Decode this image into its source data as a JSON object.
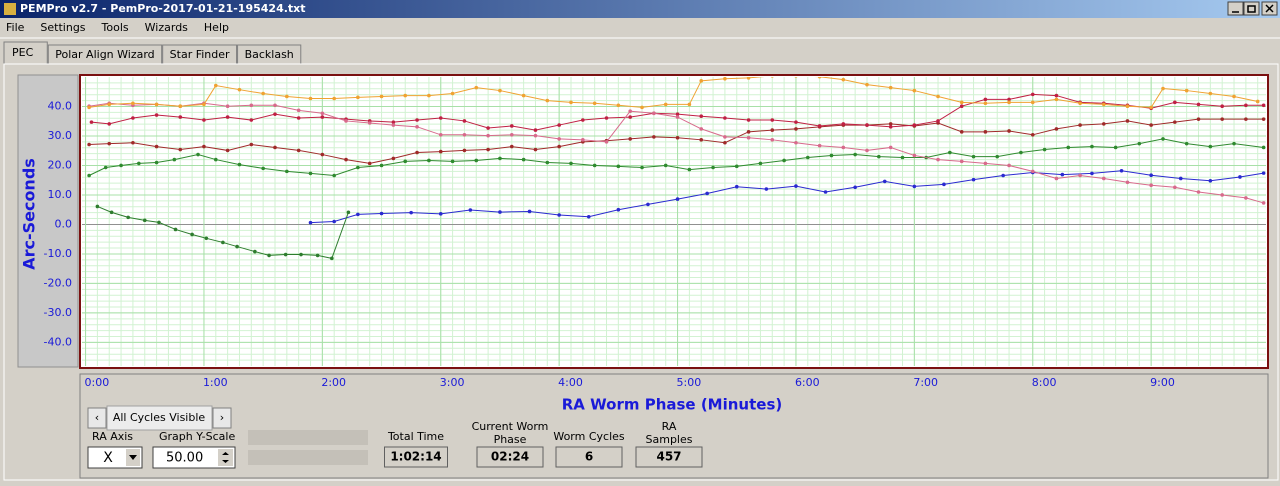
{
  "window": {
    "title": "PEMPro v2.7 - PemPro-2017-01-21-195424.txt",
    "menu": [
      "File",
      "Settings",
      "Tools",
      "Wizards",
      "Help"
    ],
    "tabs": [
      "PEC",
      "Polar Align Wizard",
      "Star Finder",
      "Backlash"
    ]
  },
  "controls": {
    "cycles": "All Cycles Visible",
    "ra_axis_label": "RA Axis",
    "ra_axis_value": "X",
    "y_scale_label": "Graph Y-Scale",
    "y_scale_value": "50.00",
    "total_time": {
      "label": [
        "Total Time"
      ],
      "value": "1:02:14"
    },
    "worm_phase": {
      "label": [
        "Current Worm",
        "Phase"
      ],
      "value": "02:24"
    },
    "worm_cycles": {
      "label": [
        "Worm Cycles"
      ],
      "value": "6"
    },
    "ra_samples": {
      "label": [
        "RA",
        "Samples"
      ],
      "value": "457"
    }
  },
  "chart_data": {
    "type": "line",
    "y_label": "Arc-Seconds",
    "x_label": "RA Worm Phase (Minutes)",
    "xlim": [
      -0.03,
      9.97
    ],
    "ylim": [
      -48,
      50
    ],
    "grid": true,
    "xticks": [
      {
        "value": 0,
        "label": "0:00"
      },
      {
        "value": 1,
        "label": "1:00"
      },
      {
        "value": 2,
        "label": "2:00"
      },
      {
        "value": 3,
        "label": "3:00"
      },
      {
        "value": 4,
        "label": "4:00"
      },
      {
        "value": 5,
        "label": "5:00"
      },
      {
        "value": 6,
        "label": "6:00"
      },
      {
        "value": 7,
        "label": "7:00"
      },
      {
        "value": 8,
        "label": "8:00"
      },
      {
        "value": 9,
        "label": "9:00"
      }
    ],
    "yticks": [
      {
        "value": 40,
        "label": "40.0"
      },
      {
        "value": 30,
        "label": "30.0"
      },
      {
        "value": 20,
        "label": "20.0"
      },
      {
        "value": 10,
        "label": "10.0"
      },
      {
        "value": 0,
        "label": "0.0"
      },
      {
        "value": -10,
        "label": "-10.0"
      },
      {
        "value": -20,
        "label": "-20.0"
      },
      {
        "value": -30,
        "label": "-30.0"
      },
      {
        "value": -40,
        "label": "-40.0"
      }
    ],
    "series": [
      {
        "color": "#2a2ad0",
        "x": [
          1.9,
          2.1,
          2.3,
          2.5,
          2.75,
          3.0,
          3.25,
          3.5,
          3.75,
          4.0,
          4.25,
          4.5,
          4.75,
          5.0,
          5.25,
          5.5,
          5.75,
          6.0,
          6.25,
          6.5,
          6.75,
          7.0,
          7.25,
          7.5,
          7.75,
          8.0,
          8.25,
          8.5,
          8.75,
          9.0,
          9.25,
          9.5,
          9.75,
          9.95
        ],
        "values": [
          0.6,
          1.0,
          3.4,
          3.7,
          4.0,
          3.6,
          4.9,
          4.2,
          4.4,
          3.2,
          2.6,
          5.0,
          6.8,
          8.6,
          10.5,
          12.8,
          12.0,
          13.0,
          11.0,
          12.6,
          14.6,
          12.9,
          13.6,
          15.2,
          16.6,
          17.6,
          16.9,
          17.3,
          18.2,
          16.7,
          15.6,
          14.8,
          16.1,
          17.4
        ]
      },
      {
        "color": "#2e7d2e",
        "x": [
          0.1,
          0.22,
          0.36,
          0.5,
          0.62,
          0.76,
          0.9,
          1.02,
          1.16,
          1.28,
          1.43,
          1.55,
          1.69,
          1.82,
          1.96,
          2.08,
          2.22
        ],
        "values": [
          6.1,
          4.1,
          2.4,
          1.4,
          0.7,
          -1.7,
          -3.4,
          -4.7,
          -6.1,
          -7.5,
          -9.2,
          -10.5,
          -10.2,
          -10.2,
          -10.5,
          -11.5,
          4.1
        ]
      },
      {
        "color": "#2f8a2f",
        "x": [
          0.03,
          0.17,
          0.3,
          0.45,
          0.6,
          0.75,
          0.95,
          1.1,
          1.3,
          1.5,
          1.7,
          1.9,
          2.1,
          2.3,
          2.5,
          2.7,
          2.9,
          3.1,
          3.3,
          3.5,
          3.7,
          3.9,
          4.1,
          4.3,
          4.5,
          4.7,
          4.9,
          5.1,
          5.3,
          5.5,
          5.7,
          5.9,
          6.1,
          6.3,
          6.5,
          6.7,
          6.9,
          7.1,
          7.3,
          7.5,
          7.7,
          7.9,
          8.1,
          8.3,
          8.5,
          8.7,
          8.9,
          9.1,
          9.3,
          9.5,
          9.7,
          9.95
        ],
        "values": [
          16.6,
          19.3,
          20.0,
          20.7,
          21.0,
          22.0,
          23.7,
          22.0,
          20.3,
          19.0,
          18.0,
          17.3,
          16.6,
          19.3,
          20.0,
          21.4,
          21.7,
          21.4,
          21.7,
          22.4,
          22.0,
          21.0,
          20.7,
          20.0,
          19.7,
          19.3,
          20.0,
          18.6,
          19.3,
          19.7,
          20.7,
          21.7,
          22.7,
          23.4,
          23.7,
          23.0,
          22.7,
          22.7,
          24.4,
          23.0,
          23.0,
          24.4,
          25.4,
          26.1,
          26.4,
          26.1,
          27.4,
          29.0,
          27.4,
          26.4,
          27.4,
          26.1
        ]
      },
      {
        "color": "#a02a2a",
        "x": [
          0.03,
          0.2,
          0.4,
          0.6,
          0.8,
          1.0,
          1.2,
          1.4,
          1.6,
          1.8,
          2.0,
          2.2,
          2.4,
          2.6,
          2.8,
          3.0,
          3.2,
          3.4,
          3.6,
          3.8,
          4.0,
          4.2,
          4.4,
          4.6,
          4.8,
          5.0,
          5.2,
          5.4,
          5.6,
          5.8,
          6.0,
          6.2,
          6.4,
          6.6,
          6.8,
          7.0,
          7.2,
          7.4,
          7.6,
          7.8,
          8.0,
          8.2,
          8.4,
          8.6,
          8.8,
          9.0,
          9.2,
          9.4,
          9.6,
          9.8,
          9.95
        ],
        "values": [
          27.1,
          27.4,
          27.7,
          26.4,
          25.4,
          26.4,
          25.1,
          27.1,
          26.1,
          25.1,
          23.7,
          22.0,
          20.7,
          22.4,
          24.4,
          24.7,
          25.1,
          25.4,
          26.4,
          25.4,
          26.4,
          28.0,
          28.4,
          29.0,
          29.7,
          29.4,
          28.7,
          27.7,
          31.4,
          32.0,
          32.4,
          33.1,
          33.7,
          33.7,
          34.1,
          33.4,
          34.4,
          31.4,
          31.4,
          31.7,
          30.4,
          32.4,
          33.7,
          34.1,
          35.1,
          33.7,
          34.7,
          35.7,
          35.7,
          35.7,
          35.7
        ]
      },
      {
        "color": "#c02044",
        "x": [
          0.05,
          0.2,
          0.4,
          0.6,
          0.8,
          1.0,
          1.2,
          1.4,
          1.6,
          1.8,
          2.0,
          2.2,
          2.4,
          2.6,
          2.8,
          3.0,
          3.2,
          3.4,
          3.6,
          3.8,
          4.0,
          4.2,
          4.4,
          4.6,
          4.8,
          5.0,
          5.2,
          5.4,
          5.6,
          5.8,
          6.0,
          6.2,
          6.4,
          6.6,
          6.8,
          7.0,
          7.2,
          7.4,
          7.6,
          7.8,
          8.0,
          8.2,
          8.4,
          8.6,
          8.8,
          9.0,
          9.2,
          9.4,
          9.6,
          9.8,
          9.95
        ],
        "values": [
          34.7,
          34.1,
          36.1,
          37.1,
          36.4,
          35.4,
          36.4,
          35.4,
          37.4,
          36.1,
          36.4,
          35.7,
          35.1,
          34.7,
          35.4,
          36.1,
          35.1,
          32.7,
          33.4,
          32.0,
          33.7,
          35.4,
          36.1,
          36.4,
          37.7,
          37.4,
          36.7,
          36.1,
          35.4,
          35.4,
          34.7,
          33.4,
          34.1,
          33.7,
          33.1,
          33.7,
          35.1,
          40.1,
          42.4,
          42.4,
          44.1,
          43.7,
          41.4,
          41.1,
          40.4,
          39.4,
          41.4,
          40.7,
          40.1,
          40.4,
          40.4
        ]
      },
      {
        "color": "#d86a8c",
        "x": [
          0.03,
          0.2,
          0.4,
          0.6,
          0.8,
          1.0,
          1.2,
          1.4,
          1.6,
          1.8,
          2.0,
          2.2,
          2.4,
          2.6,
          2.8,
          3.0,
          3.2,
          3.4,
          3.6,
          3.8,
          4.0,
          4.2,
          4.4,
          4.6,
          4.8,
          5.0,
          5.2,
          5.4,
          5.6,
          5.8,
          6.0,
          6.2,
          6.4,
          6.6,
          6.8,
          7.0,
          7.2,
          7.4,
          7.6,
          7.8,
          8.0,
          8.2,
          8.4,
          8.6,
          8.8,
          9.0,
          9.2,
          9.4,
          9.6,
          9.8,
          9.95
        ],
        "values": [
          40.1,
          41.1,
          40.4,
          40.7,
          40.1,
          41.1,
          40.1,
          40.4,
          40.4,
          38.7,
          37.7,
          35.1,
          34.4,
          33.7,
          33.1,
          30.4,
          30.4,
          30.1,
          30.4,
          30.1,
          29.0,
          28.7,
          28.0,
          38.4,
          37.7,
          36.4,
          32.4,
          29.7,
          29.4,
          28.7,
          27.7,
          26.7,
          26.1,
          25.1,
          26.1,
          23.4,
          22.0,
          21.4,
          20.7,
          20.0,
          18.0,
          15.6,
          16.6,
          15.6,
          14.3,
          13.3,
          12.6,
          11.0,
          10.0,
          9.0,
          7.3
        ]
      },
      {
        "color": "#f0a232",
        "x": [
          0.03,
          0.2,
          0.4,
          0.6,
          0.8,
          1.0,
          1.1,
          1.3,
          1.5,
          1.7,
          1.9,
          2.1,
          2.3,
          2.5,
          2.7,
          2.9,
          3.1,
          3.3,
          3.5,
          3.7,
          3.9,
          4.1,
          4.3,
          4.5,
          4.7,
          4.9,
          5.1,
          5.2,
          5.4,
          5.6,
          5.8,
          6.0,
          6.2,
          6.4,
          6.6,
          6.8,
          7.0,
          7.2,
          7.4,
          7.6,
          7.8,
          8.0,
          8.2,
          8.4,
          8.6,
          8.8,
          9.0,
          9.1,
          9.3,
          9.5,
          9.7,
          9.9
        ],
        "values": [
          39.7,
          40.7,
          41.1,
          40.7,
          40.1,
          40.7,
          47.1,
          45.7,
          44.4,
          43.4,
          42.7,
          42.7,
          43.1,
          43.4,
          43.7,
          43.7,
          44.4,
          46.4,
          45.4,
          43.7,
          42.0,
          41.4,
          41.1,
          40.4,
          39.7,
          40.7,
          40.7,
          48.7,
          49.4,
          49.7,
          50.4,
          50.4,
          50.1,
          49.1,
          47.4,
          46.4,
          45.4,
          43.4,
          41.4,
          41.1,
          41.4,
          41.4,
          42.4,
          41.1,
          40.7,
          40.1,
          39.7,
          46.1,
          45.4,
          44.4,
          43.4,
          41.7
        ]
      }
    ]
  }
}
